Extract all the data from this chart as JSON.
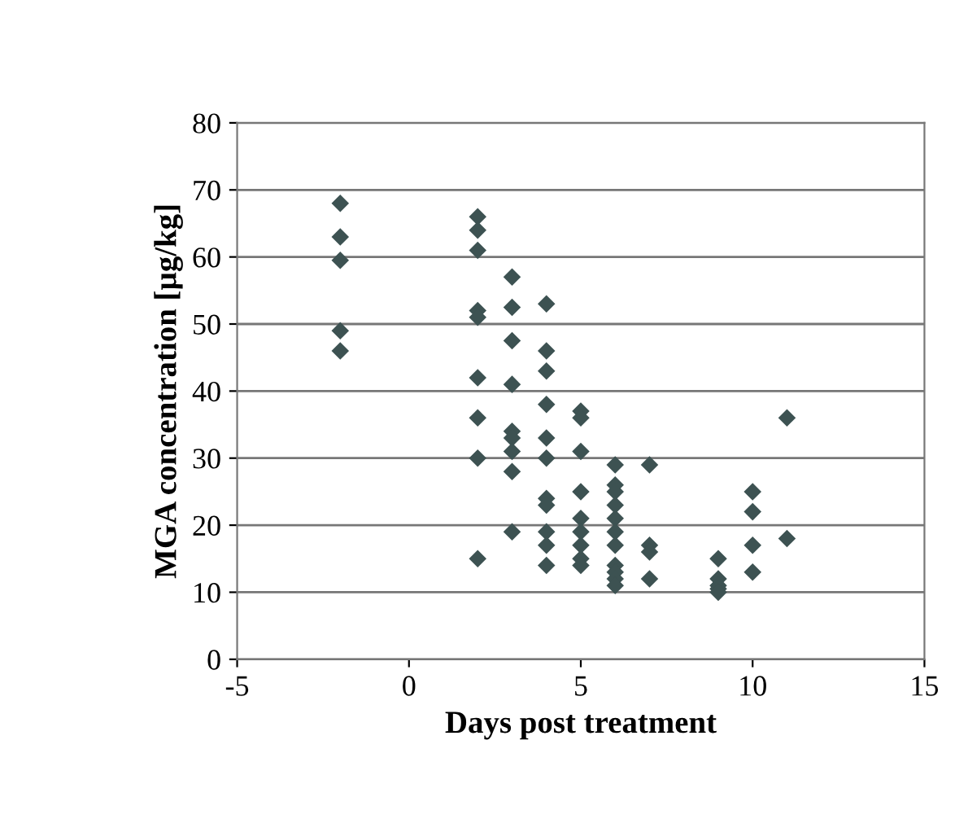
{
  "chart_data": {
    "type": "scatter",
    "xlabel": "Days post treatment",
    "ylabel": "MGA concentration [µg/kg]",
    "x": [
      -2,
      -2,
      -2,
      -2,
      -2,
      2,
      2,
      2,
      2,
      2,
      2,
      2,
      2,
      2,
      3,
      3,
      3,
      3,
      3,
      3,
      3,
      3,
      3,
      4,
      4,
      4,
      4,
      4,
      4,
      4,
      4,
      4,
      4,
      4,
      5,
      5,
      5,
      5,
      5,
      5,
      5,
      5,
      5,
      6,
      6,
      6,
      6,
      6,
      6,
      6,
      6,
      6,
      6,
      6,
      7,
      7,
      7,
      7,
      9,
      9,
      9,
      9,
      9,
      10,
      10,
      10,
      10,
      11,
      11
    ],
    "values": [
      68,
      63,
      59.5,
      49,
      46,
      66,
      64,
      61,
      52,
      51,
      42,
      36,
      30,
      15,
      57,
      52.5,
      47.5,
      41,
      34,
      33,
      31,
      28,
      19,
      53,
      46,
      43,
      38,
      33,
      30,
      24,
      23,
      19,
      17,
      14,
      37,
      36,
      31,
      25,
      21,
      19,
      17,
      15,
      14,
      29,
      26,
      25,
      23,
      21,
      19,
      17,
      14,
      13,
      12,
      11,
      29,
      17,
      16,
      12,
      15,
      12,
      11,
      10.5,
      10,
      25,
      22,
      17,
      13,
      36,
      18
    ],
    "color": "#3d5252",
    "marker": "diamond",
    "xlim": [
      -5,
      15
    ],
    "ylim": [
      0,
      80
    ],
    "xticks": [
      -5,
      0,
      5,
      10,
      15
    ],
    "yticks": [
      0,
      10,
      20,
      30,
      40,
      50,
      60,
      70,
      80
    ],
    "grid": "y"
  }
}
